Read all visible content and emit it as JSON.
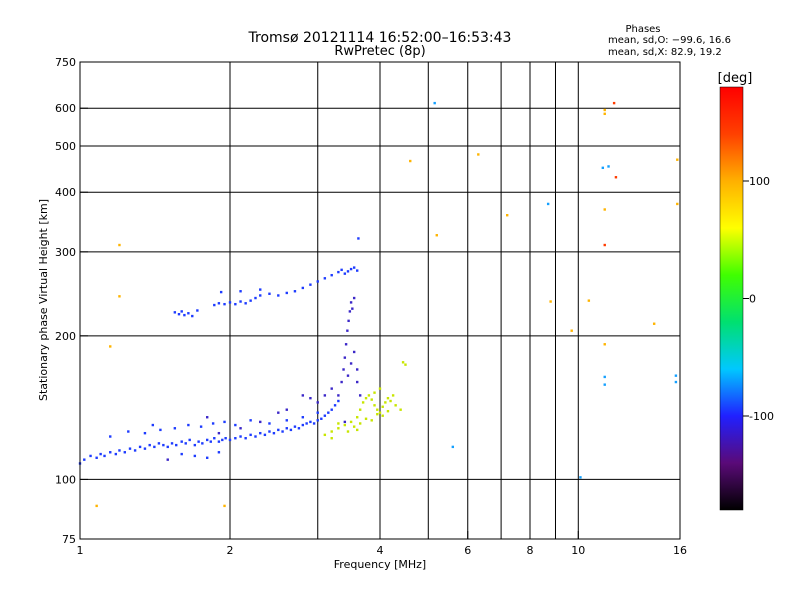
{
  "chart_data": {
    "type": "scatter",
    "title": "Tromsø 20121114 16:52:00–16:53:43",
    "subtitle": "RwPretec (8p)",
    "xlabel": "Frequency [MHz]",
    "ylabel": "Stationary phase Virtual Height [km]",
    "x_scale": "log",
    "y_scale": "log",
    "xlim": [
      1,
      16
    ],
    "ylim": [
      75,
      750
    ],
    "x_ticks": [
      1,
      2,
      4,
      6,
      8,
      10,
      16
    ],
    "x_minor_ticks": [
      3,
      5,
      7,
      9
    ],
    "y_ticks": [
      75,
      100,
      200,
      300,
      400,
      500,
      600,
      750
    ],
    "grid": true,
    "phases_heading": "Phases",
    "phase_stats": [
      "mean, sd,O: −99.6, 16.6",
      "mean, sd,X:  82.9, 19.2"
    ],
    "colorbar": {
      "label": "[deg]",
      "range": [
        -180,
        180
      ],
      "ticks": [
        -100,
        0,
        100
      ],
      "colors": [
        "#000000",
        "#5a0a78",
        "#2020ff",
        "#00c8ff",
        "#00e070",
        "#40ff00",
        "#ffff00",
        "#ffb000",
        "#ff4000",
        "#ff0000"
      ]
    },
    "series": [
      {
        "color": "#1e3cff",
        "points": [
          [
            1.0,
            108
          ],
          [
            1.02,
            110
          ],
          [
            1.05,
            112
          ],
          [
            1.08,
            111
          ],
          [
            1.1,
            113
          ],
          [
            1.12,
            112
          ],
          [
            1.15,
            114
          ],
          [
            1.18,
            113
          ],
          [
            1.2,
            115
          ],
          [
            1.23,
            114
          ],
          [
            1.26,
            116
          ],
          [
            1.29,
            115
          ],
          [
            1.32,
            117
          ],
          [
            1.35,
            116
          ],
          [
            1.38,
            118
          ],
          [
            1.41,
            117
          ],
          [
            1.44,
            119
          ],
          [
            1.47,
            118
          ],
          [
            1.5,
            117
          ],
          [
            1.53,
            119
          ],
          [
            1.56,
            118
          ],
          [
            1.6,
            120
          ],
          [
            1.63,
            119
          ],
          [
            1.66,
            121
          ],
          [
            1.7,
            118
          ],
          [
            1.73,
            120
          ],
          [
            1.76,
            119
          ],
          [
            1.8,
            121
          ],
          [
            1.83,
            120
          ],
          [
            1.86,
            122
          ],
          [
            1.9,
            120
          ],
          [
            1.93,
            121
          ],
          [
            1.96,
            122
          ],
          [
            2.0,
            121
          ],
          [
            2.05,
            122
          ],
          [
            2.1,
            123
          ],
          [
            2.15,
            122
          ],
          [
            2.2,
            124
          ],
          [
            2.25,
            123
          ],
          [
            2.3,
            125
          ],
          [
            2.35,
            124
          ],
          [
            2.4,
            126
          ],
          [
            2.45,
            125
          ],
          [
            2.5,
            127
          ],
          [
            2.55,
            126
          ],
          [
            2.6,
            128
          ],
          [
            2.65,
            127
          ],
          [
            2.7,
            129
          ],
          [
            2.75,
            128
          ],
          [
            2.8,
            130
          ],
          [
            2.85,
            131
          ],
          [
            2.9,
            132
          ],
          [
            2.95,
            131
          ],
          [
            3.0,
            133
          ],
          [
            3.05,
            134
          ],
          [
            3.1,
            136
          ],
          [
            3.15,
            138
          ],
          [
            3.2,
            140
          ],
          [
            3.25,
            143
          ],
          [
            3.3,
            146
          ],
          [
            1.15,
            123
          ],
          [
            1.25,
            126
          ],
          [
            1.35,
            125
          ],
          [
            1.45,
            127
          ],
          [
            1.55,
            128
          ],
          [
            1.65,
            130
          ],
          [
            1.75,
            129
          ],
          [
            1.85,
            131
          ],
          [
            1.95,
            132
          ],
          [
            2.05,
            130
          ],
          [
            1.6,
            113
          ],
          [
            1.7,
            112
          ],
          [
            1.8,
            111
          ],
          [
            1.9,
            114
          ],
          [
            2.2,
            133
          ],
          [
            2.4,
            131
          ],
          [
            2.6,
            133
          ],
          [
            2.8,
            135
          ],
          [
            3.0,
            138
          ],
          [
            1.4,
            130
          ]
        ]
      },
      {
        "color": "#1e3cff",
        "points": [
          [
            1.55,
            224
          ],
          [
            1.58,
            222
          ],
          [
            1.6,
            225
          ],
          [
            1.62,
            221
          ],
          [
            1.65,
            223
          ],
          [
            1.68,
            220
          ],
          [
            1.72,
            226
          ],
          [
            1.86,
            232
          ],
          [
            1.9,
            234
          ],
          [
            1.95,
            233
          ],
          [
            2.0,
            235
          ],
          [
            2.05,
            233
          ],
          [
            2.1,
            236
          ],
          [
            2.15,
            234
          ],
          [
            2.2,
            237
          ],
          [
            2.25,
            240
          ],
          [
            2.3,
            243
          ],
          [
            2.4,
            245
          ],
          [
            2.5,
            243
          ],
          [
            2.6,
            246
          ],
          [
            2.7,
            248
          ],
          [
            2.8,
            252
          ],
          [
            2.9,
            256
          ],
          [
            3.0,
            260
          ],
          [
            3.1,
            264
          ],
          [
            3.2,
            268
          ],
          [
            3.3,
            272
          ],
          [
            3.35,
            275
          ],
          [
            3.4,
            270
          ],
          [
            3.45,
            273
          ],
          [
            3.5,
            276
          ],
          [
            3.55,
            278
          ],
          [
            3.6,
            274
          ],
          [
            3.62,
            320
          ],
          [
            1.92,
            247
          ],
          [
            2.1,
            248
          ],
          [
            2.3,
            250
          ]
        ]
      },
      {
        "color": "#3c28c8",
        "points": [
          [
            3.3,
            150
          ],
          [
            3.35,
            160
          ],
          [
            3.38,
            170
          ],
          [
            3.4,
            180
          ],
          [
            3.42,
            192
          ],
          [
            3.44,
            205
          ],
          [
            3.46,
            215
          ],
          [
            3.48,
            225
          ],
          [
            3.5,
            235
          ],
          [
            3.52,
            228
          ],
          [
            3.55,
            240
          ],
          [
            3.5,
            175
          ],
          [
            3.45,
            165
          ],
          [
            3.55,
            185
          ],
          [
            3.6,
            170
          ],
          [
            3.6,
            160
          ],
          [
            3.65,
            150
          ],
          [
            3.2,
            155
          ],
          [
            3.1,
            150
          ],
          [
            3.0,
            145
          ],
          [
            2.9,
            148
          ],
          [
            2.8,
            150
          ],
          [
            2.6,
            140
          ],
          [
            2.5,
            138
          ],
          [
            2.3,
            132
          ],
          [
            2.1,
            128
          ],
          [
            1.9,
            125
          ],
          [
            1.8,
            135
          ],
          [
            1.5,
            110
          ],
          [
            3.4,
            132
          ]
        ]
      },
      {
        "color": "#c8e600",
        "points": [
          [
            3.1,
            124
          ],
          [
            3.2,
            126
          ],
          [
            3.3,
            128
          ],
          [
            3.4,
            130
          ],
          [
            3.5,
            132
          ],
          [
            3.6,
            135
          ],
          [
            3.65,
            140
          ],
          [
            3.7,
            145
          ],
          [
            3.75,
            148
          ],
          [
            3.8,
            150
          ],
          [
            3.85,
            147
          ],
          [
            3.9,
            143
          ],
          [
            3.95,
            140
          ],
          [
            4.0,
            138
          ],
          [
            4.05,
            142
          ],
          [
            4.1,
            145
          ],
          [
            4.15,
            148
          ],
          [
            4.2,
            146
          ],
          [
            4.25,
            150
          ],
          [
            4.3,
            143
          ],
          [
            3.45,
            126
          ],
          [
            3.55,
            129
          ],
          [
            3.65,
            131
          ],
          [
            3.75,
            134
          ],
          [
            3.85,
            133
          ],
          [
            3.95,
            137
          ],
          [
            4.05,
            136
          ],
          [
            4.15,
            139
          ],
          [
            3.3,
            131
          ],
          [
            3.6,
            127
          ],
          [
            4.4,
            140
          ],
          [
            4.5,
            174
          ],
          [
            4.45,
            176
          ],
          [
            3.2,
            122
          ],
          [
            3.9,
            152
          ],
          [
            4.0,
            155
          ]
        ]
      },
      {
        "color": "#ffb400",
        "points": [
          [
            1.08,
            88
          ],
          [
            1.2,
            242
          ],
          [
            1.2,
            310
          ],
          [
            1.15,
            190
          ],
          [
            1.95,
            88
          ],
          [
            4.6,
            465
          ],
          [
            5.2,
            325
          ],
          [
            6.3,
            480
          ],
          [
            7.2,
            358
          ],
          [
            8.8,
            236
          ],
          [
            9.7,
            205
          ],
          [
            10.5,
            237
          ],
          [
            11.3,
            595
          ],
          [
            11.3,
            584
          ],
          [
            11.3,
            368
          ],
          [
            11.3,
            192
          ],
          [
            15.8,
            468
          ],
          [
            15.8,
            378
          ],
          [
            14.2,
            212
          ]
        ]
      },
      {
        "color": "#ff3c00",
        "points": [
          [
            11.3,
            310
          ],
          [
            11.8,
            615
          ],
          [
            11.9,
            430
          ]
        ]
      },
      {
        "color": "#14a0ff",
        "points": [
          [
            5.15,
            615
          ],
          [
            5.6,
            117
          ],
          [
            8.7,
            378
          ],
          [
            10.1,
            101
          ],
          [
            11.2,
            450
          ],
          [
            11.5,
            453
          ],
          [
            11.3,
            164
          ],
          [
            11.3,
            158
          ],
          [
            15.7,
            165
          ],
          [
            15.7,
            160
          ]
        ]
      }
    ]
  }
}
